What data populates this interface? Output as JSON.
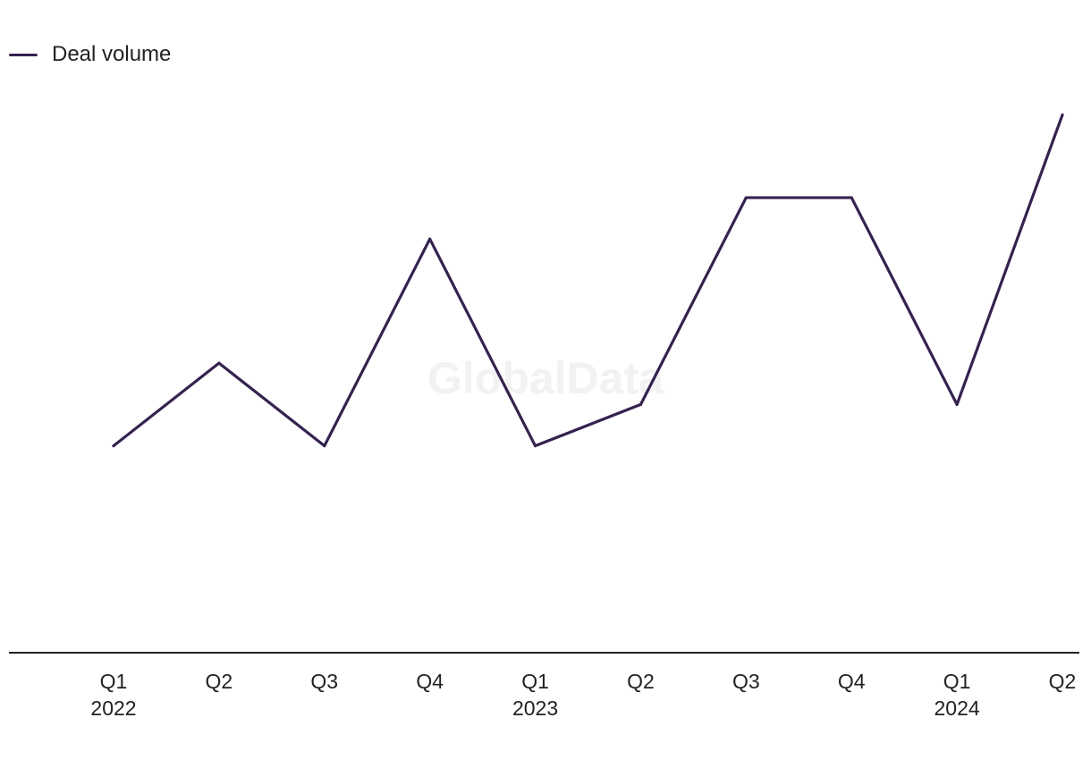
{
  "watermark": "GlobalData",
  "colors": {
    "line": "#35224f",
    "axis": "#222222",
    "text": "#222222"
  },
  "chart_data": {
    "type": "line",
    "x": [
      "Q1 2022",
      "Q2 2022",
      "Q3 2022",
      "Q4 2022",
      "Q1 2023",
      "Q2 2023",
      "Q3 2023",
      "Q4 2023",
      "Q1 2024",
      "Q2 2024"
    ],
    "tick_labels": [
      {
        "quarter": "Q1",
        "year": "2022"
      },
      {
        "quarter": "Q2",
        "year": ""
      },
      {
        "quarter": "Q3",
        "year": ""
      },
      {
        "quarter": "Q4",
        "year": ""
      },
      {
        "quarter": "Q1",
        "year": "2023"
      },
      {
        "quarter": "Q2",
        "year": ""
      },
      {
        "quarter": "Q3",
        "year": ""
      },
      {
        "quarter": "Q4",
        "year": ""
      },
      {
        "quarter": "Q1",
        "year": "2024"
      },
      {
        "quarter": "Q2",
        "year": ""
      }
    ],
    "series": [
      {
        "name": "Deal volume",
        "values": [
          5,
          7,
          5,
          10,
          5,
          6,
          11,
          11,
          6,
          13
        ]
      }
    ],
    "ylim": [
      0,
      15
    ],
    "grid": false,
    "legend": "top-left"
  }
}
